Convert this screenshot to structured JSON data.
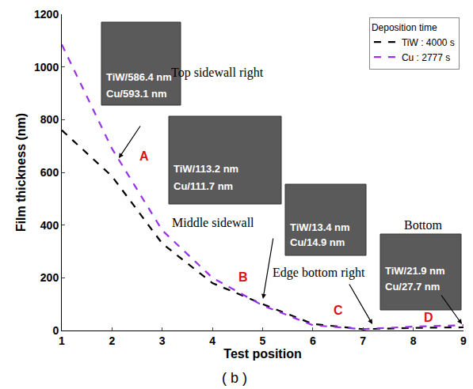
{
  "chart_data": {
    "type": "line",
    "xlabel": "Test position",
    "ylabel": "Film thickness (nm)",
    "caption": "( b )",
    "x": [
      1,
      2,
      3,
      4,
      5,
      6,
      7,
      8,
      9
    ],
    "series": [
      {
        "name": "TiW : 4000 s",
        "color": "#000000",
        "line_style": "dash",
        "values": [
          760,
          585,
          330,
          180,
          100,
          25,
          5,
          10,
          12
        ]
      },
      {
        "name": "Cu : 2777 s",
        "color": "#9b30e8",
        "line_style": "dash",
        "values": [
          1085,
          690,
          380,
          200,
          95,
          20,
          5,
          15,
          20
        ]
      }
    ],
    "xlim": [
      1,
      9
    ],
    "ylim": [
      0,
      1200
    ],
    "xticks": [
      1,
      2,
      3,
      4,
      5,
      6,
      7,
      8,
      9
    ],
    "yticks": [
      0,
      200,
      400,
      600,
      800,
      1000,
      1200
    ],
    "grid": false,
    "legend": "top right",
    "legend_title": "Deposition time",
    "regions": [
      {
        "letter": "A",
        "name": "Top sidewall right",
        "texts": [
          "TiW/586.4 nm",
          "Cu/593.1 nm"
        ]
      },
      {
        "letter": "B",
        "name": "Middle sidewall",
        "texts": [
          "TiW/113.2 nm",
          "Cu/111.7 nm"
        ]
      },
      {
        "letter": "C",
        "name": "Edge bottom right",
        "texts": [
          "TiW/13.4 nm",
          "Cu/14.9 nm"
        ]
      },
      {
        "letter": "D",
        "name": "Bottom",
        "texts": [
          "TiW/21.9 nm",
          "Cu/27.7 nm"
        ]
      }
    ]
  }
}
